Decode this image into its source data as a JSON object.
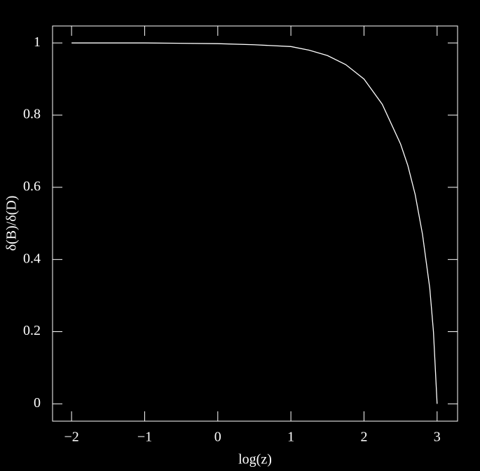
{
  "chart_data": {
    "type": "line",
    "x_label": "log(z)",
    "y_label": "δ(B)/δ(D)",
    "x": [
      -2,
      -1,
      0,
      0.5,
      1,
      1.25,
      1.5,
      1.75,
      2,
      2.25,
      2.5,
      2.6,
      2.7,
      2.8,
      2.9,
      2.95,
      3
    ],
    "series": [
      {
        "color": "#ffffff",
        "values": [
          1,
          1,
          0.998,
          0.995,
          0.99,
          0.98,
          0.965,
          0.94,
          0.9,
          0.83,
          0.72,
          0.66,
          0.58,
          0.47,
          0.32,
          0.2,
          0
        ]
      }
    ],
    "xlim": [
      -2.26,
      3.28
    ],
    "ylim": [
      -0.048,
      1.047
    ],
    "xticks": [
      {
        "value": -2,
        "label": "−2"
      },
      {
        "value": -1,
        "label": "−1"
      },
      0,
      1,
      2,
      3
    ],
    "yticks": [
      0,
      0.2,
      0.4,
      0.6,
      0.8,
      1
    ],
    "frame_color": "#ffffff",
    "background": "#000000"
  }
}
